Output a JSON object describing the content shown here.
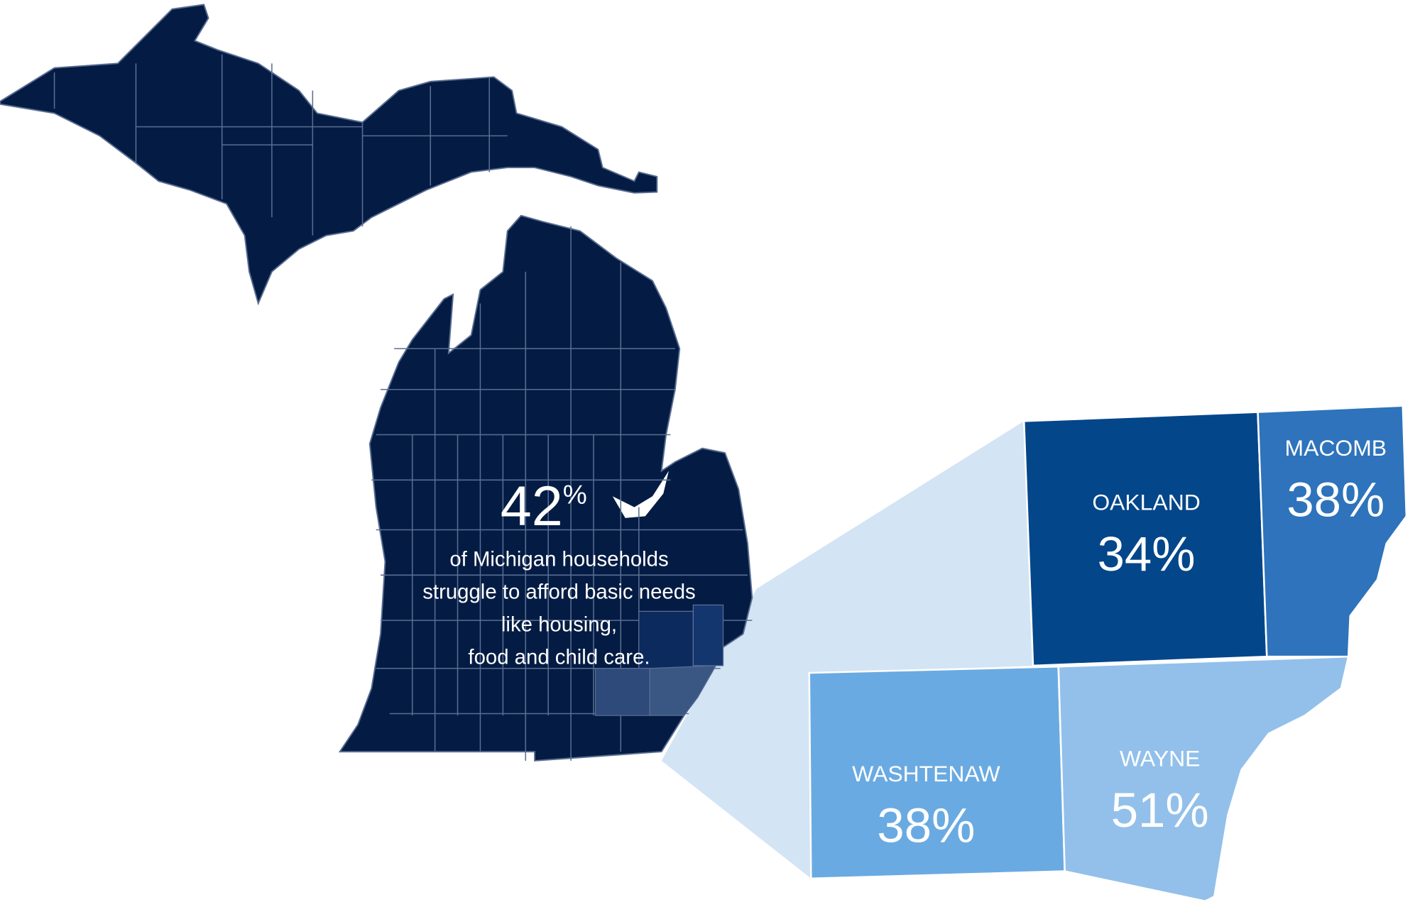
{
  "headline": {
    "number": "42",
    "suffix": "%"
  },
  "description": [
    "of Michigan households",
    "struggle to afford basic needs",
    "like housing,",
    "food and child care."
  ],
  "counties": [
    {
      "name": "OAKLAND",
      "label": "34%",
      "color": "#03468a"
    },
    {
      "name": "MACOMB",
      "label": "38%",
      "color": "#2e73bb"
    },
    {
      "name": "WASHTENAW",
      "label": "38%",
      "color": "#6aaae2"
    },
    {
      "name": "WAYNE",
      "label": "51%",
      "color": "#92c0ea"
    }
  ]
}
